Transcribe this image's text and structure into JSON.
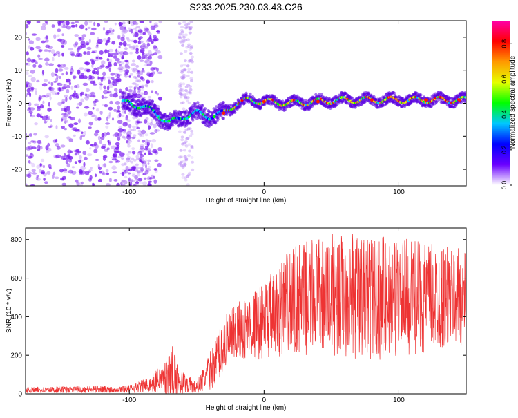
{
  "title": "S233.2025.230.03.43.C26",
  "chart_data": [
    {
      "type": "heatmap",
      "xlabel": "Height of straight line (km)",
      "ylabel": "Frequency (Hz)",
      "xlim": [
        -177,
        150
      ],
      "ylim": [
        -25,
        25
      ],
      "x_ticks": [
        -100,
        0,
        100
      ],
      "y_ticks": [
        -20,
        -10,
        0,
        10,
        20
      ],
      "colorbar": {
        "label": "Normalized spectral amplitude",
        "range": [
          0,
          0.93
        ],
        "ticks": [
          0,
          0.2,
          0.4,
          0.6,
          0.8
        ],
        "tick_labels": [
          "0.0",
          "0.2",
          "0.4",
          "0.6",
          "0.8"
        ],
        "stops": [
          "#ffffff",
          "#6a00ff",
          "#0000ff",
          "#00c8ff",
          "#00ff00",
          "#e6ff00",
          "#ff9900",
          "#ff0000",
          "#ff00aa"
        ]
      },
      "ridge": [
        {
          "x": -100,
          "y": 0
        },
        {
          "x": -90,
          "y": -1
        },
        {
          "x": -80,
          "y": -3
        },
        {
          "x": -70,
          "y": -6
        },
        {
          "x": -60,
          "y": -4
        },
        {
          "x": -50,
          "y": -3
        },
        {
          "x": -40,
          "y": -4
        },
        {
          "x": -30,
          "y": -3
        },
        {
          "x": -20,
          "y": 0
        },
        {
          "x": -10,
          "y": 1
        },
        {
          "x": 0,
          "y": 0.5
        },
        {
          "x": 20,
          "y": 0
        },
        {
          "x": 40,
          "y": 0.5
        },
        {
          "x": 60,
          "y": 1
        },
        {
          "x": 80,
          "y": 1
        },
        {
          "x": 100,
          "y": 1
        },
        {
          "x": 120,
          "y": 1
        },
        {
          "x": 140,
          "y": 1
        },
        {
          "x": 150,
          "y": 1
        }
      ]
    },
    {
      "type": "line",
      "xlabel": "Height of straight line (km)",
      "ylabel": "SNR (10 * v/v)",
      "xlim": [
        -177,
        150
      ],
      "ylim": [
        0,
        860
      ],
      "x_ticks": [
        -100,
        0,
        100
      ],
      "y_ticks": [
        0,
        200,
        400,
        600,
        800
      ],
      "color": "#ee3333",
      "envelope": [
        {
          "x": -177,
          "mean": 20,
          "spread": 15
        },
        {
          "x": -100,
          "mean": 25,
          "spread": 20
        },
        {
          "x": -85,
          "mean": 50,
          "spread": 40
        },
        {
          "x": -75,
          "mean": 80,
          "spread": 80
        },
        {
          "x": -68,
          "mean": 100,
          "spread": 150
        },
        {
          "x": -60,
          "mean": 60,
          "spread": 60
        },
        {
          "x": -50,
          "mean": 30,
          "spread": 30
        },
        {
          "x": -40,
          "mean": 120,
          "spread": 100
        },
        {
          "x": -30,
          "mean": 250,
          "spread": 150
        },
        {
          "x": -20,
          "mean": 320,
          "spread": 150
        },
        {
          "x": 0,
          "mean": 380,
          "spread": 200
        },
        {
          "x": 20,
          "mean": 480,
          "spread": 280
        },
        {
          "x": 50,
          "mean": 520,
          "spread": 320
        },
        {
          "x": 80,
          "mean": 500,
          "spread": 330
        },
        {
          "x": 110,
          "mean": 500,
          "spread": 300
        },
        {
          "x": 150,
          "mean": 500,
          "spread": 250
        }
      ]
    }
  ]
}
